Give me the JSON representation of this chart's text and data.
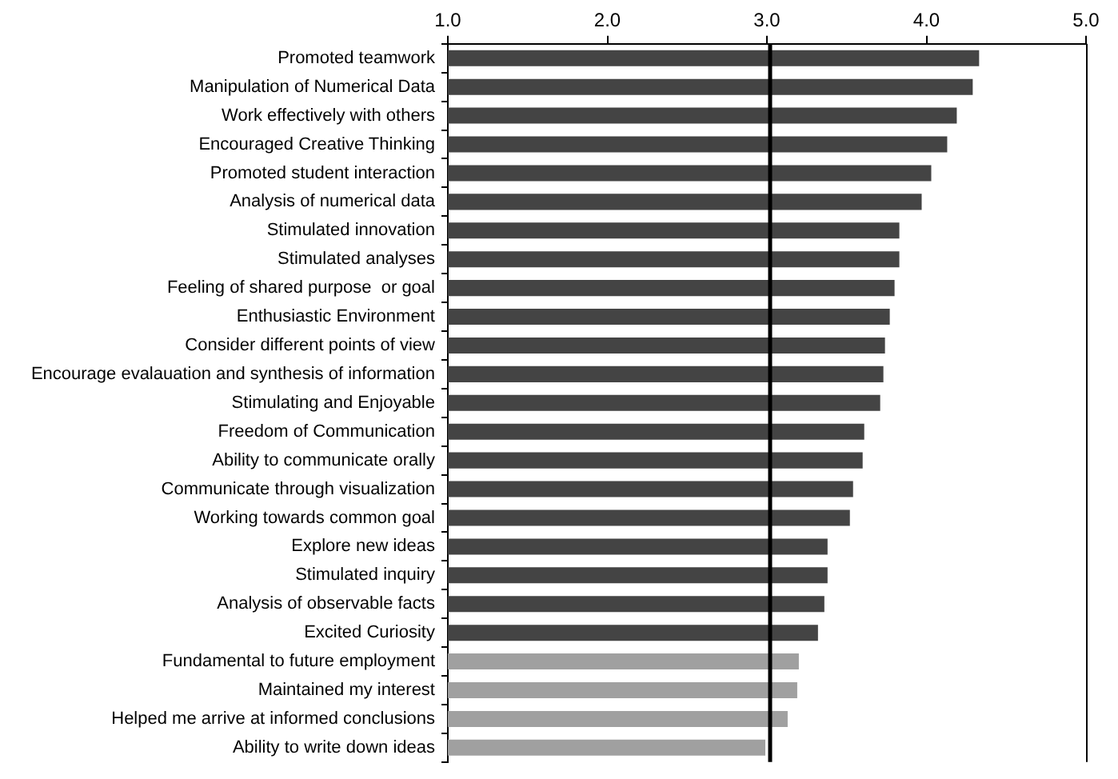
{
  "chart_data": {
    "type": "bar",
    "orientation": "horizontal",
    "categories": [
      "Promoted teamwork",
      "Manipulation of Numerical Data",
      "Work effectively with others",
      "Encouraged Creative Thinking",
      "Promoted student interaction",
      "Analysis of numerical data",
      "Stimulated innovation",
      "Stimulated analyses",
      "Feeling of shared purpose  or goal",
      "Enthusiastic Environment",
      "Consider different points of view",
      "Encourage evalauation and synthesis of information",
      "Stimulating and Enjoyable",
      "Freedom of Communication",
      "Ability to communicate orally",
      "Communicate through visualization",
      "Working towards common goal",
      "Explore new ideas",
      "Stimulated inquiry",
      "Analysis of observable facts",
      "Excited Curiosity",
      "Fundamental to future employment",
      "Maintained my interest",
      "Helped me arrive at informed conclusions",
      "Ability to write down ideas"
    ],
    "values": [
      4.33,
      4.29,
      4.19,
      4.13,
      4.03,
      3.97,
      3.83,
      3.83,
      3.8,
      3.77,
      3.74,
      3.73,
      3.71,
      3.61,
      3.6,
      3.54,
      3.52,
      3.38,
      3.38,
      3.36,
      3.32,
      3.2,
      3.19,
      3.13,
      2.99
    ],
    "colors": [
      "#444444",
      "#444444",
      "#444444",
      "#444444",
      "#444444",
      "#444444",
      "#444444",
      "#444444",
      "#444444",
      "#444444",
      "#444444",
      "#444444",
      "#444444",
      "#444444",
      "#444444",
      "#444444",
      "#444444",
      "#444444",
      "#444444",
      "#444444",
      "#444444",
      "#a0a0a0",
      "#a0a0a0",
      "#a0a0a0",
      "#a0a0a0"
    ],
    "xlim": [
      1,
      5
    ],
    "xticks": [
      {
        "value": 1,
        "label": "1.0"
      },
      {
        "value": 2,
        "label": "2.0"
      },
      {
        "value": 3,
        "label": "3.0"
      },
      {
        "value": 4,
        "label": "4.0"
      },
      {
        "value": 5,
        "label": "5.0"
      }
    ],
    "ref_lines": [
      {
        "axis": "x",
        "value": 3.02,
        "color": "#000000"
      }
    ],
    "grid": false,
    "legend": false
  }
}
